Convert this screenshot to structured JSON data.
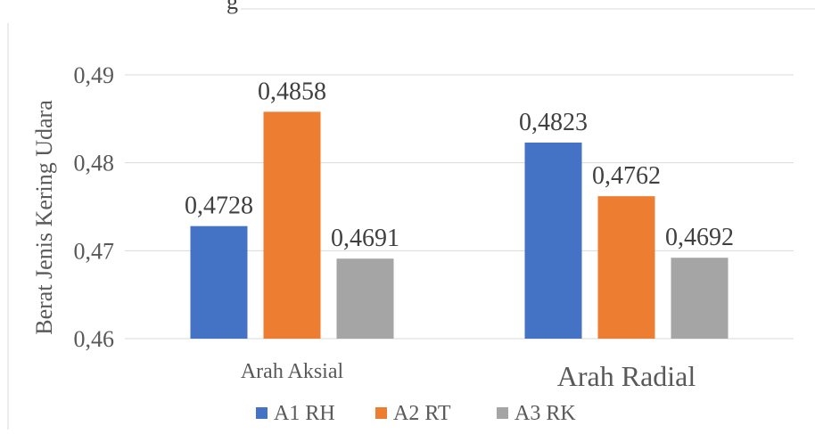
{
  "chart_data": {
    "type": "bar",
    "title_fragment": "g",
    "ylabel": "Berat Jenis Kering Udara",
    "xlabel": "",
    "categories": [
      "Arah Aksial",
      "Arah Radial"
    ],
    "series": [
      {
        "name": "A1 RH",
        "color": "#4472c4",
        "values": [
          0.4728,
          0.4823
        ],
        "labels": [
          "0,4728",
          "0,4823"
        ]
      },
      {
        "name": "A2 RT",
        "color": "#ed7d31",
        "values": [
          0.4858,
          0.4762
        ],
        "labels": [
          "0,4858",
          "0,4762"
        ]
      },
      {
        "name": "A3 RK",
        "color": "#a5a5a5",
        "values": [
          0.4691,
          0.4692
        ],
        "labels": [
          "0,4691",
          "0,4692"
        ]
      }
    ],
    "ylim": [
      0.46,
      0.49
    ],
    "yticks": [
      0.46,
      0.47,
      0.48,
      0.49
    ],
    "ytick_labels": [
      "0,46",
      "0,47",
      "0,48",
      "0,49"
    ],
    "grid": true,
    "legend_position": "bottom"
  }
}
